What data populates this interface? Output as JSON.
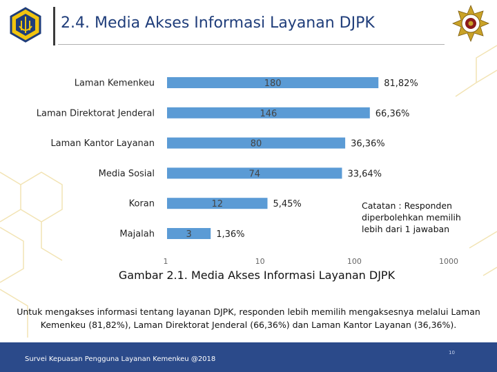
{
  "slide": {
    "title": "2.4. Media Akses Informasi Layanan DJPK",
    "note": "Catatan : Responden diperbolehkan memilih lebih dari 1 jawaban",
    "caption": "Gambar 2.1. Media Akses Informasi Layanan DJPK",
    "paragraph": "Untuk mengakses informasi tentang layanan DJPK, responden lebih memilih mengaksesnya melalui Laman Kemenkeu (81,82%), Laman Direktorat Jenderal (66,36%) dan Laman Kantor Layanan (36,36%).",
    "footer": "Survei Kepuasan Pengguna Layanan Kemenkeu @2018",
    "page_number": "10"
  },
  "colors": {
    "bar": "#5b9bd5",
    "title": "#1f3d7a",
    "footer": "#2b4a8a",
    "hex_lines": "#f2e3b3"
  },
  "chart_data": {
    "type": "bar",
    "orientation": "horizontal",
    "x_scale": "log",
    "categories": [
      "Laman Kemenkeu",
      "Laman Direktorat Jenderal",
      "Laman Kantor Layanan",
      "Media Sosial",
      "Koran",
      "Majalah"
    ],
    "values": [
      180,
      146,
      80,
      74,
      12,
      3
    ],
    "percent_labels": [
      "81,82%",
      "66,36%",
      "36,36%",
      "33,64%",
      "5,45%",
      "1,36%"
    ],
    "xlim": [
      1,
      1000
    ],
    "x_ticks": [
      "1",
      "10",
      "100",
      "1000"
    ],
    "grid": false
  }
}
